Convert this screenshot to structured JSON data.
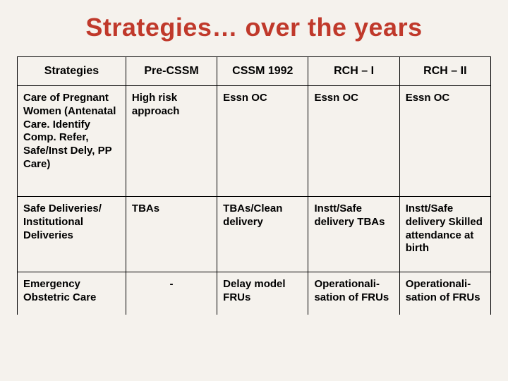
{
  "title": "Strategies… over the years",
  "table": {
    "columns": [
      "Strategies",
      "Pre-CSSM",
      "CSSM 1992",
      "RCH – I",
      "RCH – II"
    ],
    "column_align": [
      "center",
      "center",
      "center",
      "center",
      "center"
    ],
    "column_widths_pct": [
      21,
      19.75,
      19.75,
      19.75,
      19.75
    ],
    "rows": [
      {
        "cells": [
          "Care of Pregnant Women (Antenatal Care. Identify Comp. Refer, Safe/Inst Dely, PP Care)",
          "High risk approach",
          "Essn OC",
          "Essn OC",
          "Essn OC"
        ],
        "row_class": "row-tall"
      },
      {
        "cells": [
          "Safe Deliveries/ Institutional Deliveries",
          "TBAs",
          "TBAs/Clean delivery",
          "Instt/Safe delivery TBAs",
          "Instt/Safe delivery Skilled attendance at birth"
        ],
        "row_class": "row-med"
      },
      {
        "cells": [
          "Emergency Obstetric Care",
          "-",
          "Delay model FRUs",
          "Operationali-sation of FRUs",
          "Operationali-sation of FRUs"
        ],
        "cell_align": [
          "left",
          "center",
          "left",
          "left",
          "left"
        ],
        "row_class": "no-bottom"
      }
    ],
    "border_color": "#000000",
    "header_fontsize": 16,
    "cell_fontsize": 15
  },
  "colors": {
    "background": "#f5f2ed",
    "title": "#c0392b",
    "text": "#000000"
  }
}
